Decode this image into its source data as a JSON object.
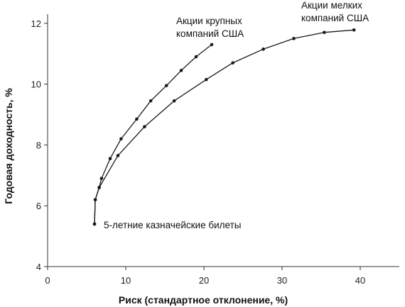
{
  "chart_data": {
    "type": "line",
    "title": "",
    "xlabel": "Риск (стандартное отклонение, %)",
    "ylabel": "Годовая доходность, %",
    "xlim": [
      0,
      45
    ],
    "ylim": [
      4,
      12.3
    ],
    "xticks": [
      "0",
      "10",
      "20",
      "30",
      "40"
    ],
    "yticks": [
      "4",
      "6",
      "8",
      "10",
      "12"
    ],
    "grid": false,
    "legend": "none",
    "annotations": {
      "large_line1": "Акции крупных",
      "large_line2": "компаний США",
      "small_line1": "Акции мелких",
      "small_line2": "компаний США",
      "bills": "5-летние казначейские билеты"
    },
    "series": [
      {
        "key": "large",
        "x": [
          6.0,
          6.1,
          6.6,
          6.9,
          8.0,
          9.4,
          11.4,
          13.2,
          15.2,
          17.1,
          19.0,
          21.0
        ],
        "y": [
          5.4,
          6.2,
          6.6,
          6.9,
          7.55,
          8.2,
          8.85,
          9.45,
          9.95,
          10.45,
          10.9,
          11.3
        ]
      },
      {
        "key": "small",
        "x": [
          6.0,
          6.1,
          6.6,
          9.0,
          12.4,
          16.2,
          20.3,
          23.7,
          27.6,
          31.5,
          35.4,
          39.2
        ],
        "y": [
          5.4,
          6.2,
          6.6,
          7.65,
          8.6,
          9.45,
          10.15,
          10.7,
          11.15,
          11.5,
          11.7,
          11.78
        ]
      }
    ],
    "colors": {
      "line": "#1a1a1a",
      "axis": "#333333"
    }
  }
}
